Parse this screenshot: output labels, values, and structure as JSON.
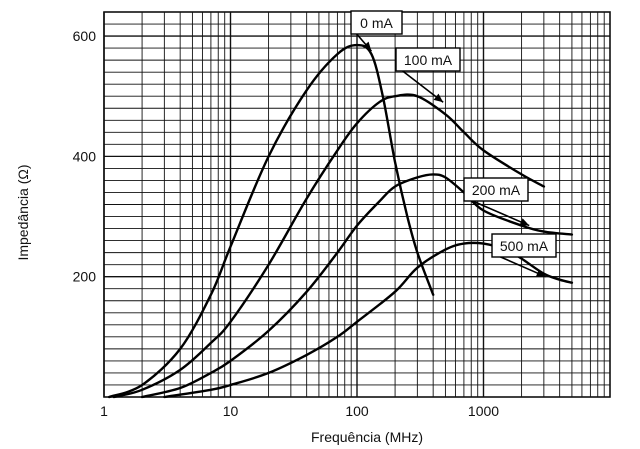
{
  "chart_data": {
    "type": "line",
    "title": "",
    "xlabel": "Frequência (MHz)",
    "ylabel": "Impedância (Ω)",
    "xscale": "log",
    "xlim": [
      1,
      10000
    ],
    "ylim": [
      0,
      640
    ],
    "grid": true,
    "x_ticks": [
      {
        "value": 1,
        "label": "1"
      },
      {
        "value": 10,
        "label": "10"
      },
      {
        "value": 100,
        "label": "100"
      },
      {
        "value": 1000,
        "label": "1000"
      }
    ],
    "y_ticks": [
      {
        "value": 200,
        "label": "200"
      },
      {
        "value": 400,
        "label": "400"
      },
      {
        "value": 600,
        "label": "600"
      }
    ],
    "series": [
      {
        "name": "0 mA",
        "x": [
          1.1,
          2,
          4,
          7,
          10,
          20,
          40,
          70,
          100,
          130,
          160,
          200,
          250,
          300,
          400
        ],
        "y": [
          0,
          20,
          80,
          170,
          250,
          400,
          510,
          570,
          585,
          570,
          500,
          390,
          300,
          240,
          170
        ]
      },
      {
        "name": "100 mA",
        "x": [
          1.2,
          2,
          4,
          7,
          10,
          20,
          40,
          70,
          100,
          150,
          200,
          300,
          500,
          700,
          1000,
          2000,
          3000
        ],
        "y": [
          0,
          12,
          45,
          90,
          125,
          220,
          330,
          410,
          455,
          490,
          500,
          500,
          470,
          440,
          410,
          370,
          350
        ]
      },
      {
        "name": "200 mA",
        "x": [
          2,
          4,
          7,
          10,
          20,
          40,
          70,
          100,
          150,
          200,
          300,
          400,
          500,
          700,
          1000,
          2000,
          3000,
          5000
        ],
        "y": [
          0,
          15,
          40,
          60,
          110,
          175,
          240,
          285,
          325,
          350,
          365,
          370,
          365,
          340,
          310,
          285,
          275,
          270
        ]
      },
      {
        "name": "500 mA",
        "x": [
          3,
          7,
          10,
          20,
          40,
          70,
          100,
          200,
          300,
          500,
          700,
          1000,
          1500,
          2000,
          3000,
          4000,
          5000
        ],
        "y": [
          0,
          12,
          20,
          40,
          70,
          100,
          125,
          175,
          215,
          245,
          255,
          255,
          245,
          230,
          205,
          195,
          190
        ]
      }
    ],
    "annotations": [
      {
        "series": "0 mA",
        "text": "0 mA",
        "point_x": 130,
        "point_y": 575
      },
      {
        "series": "100 mA",
        "text": "100 mA",
        "point_x": 480,
        "point_y": 490
      },
      {
        "series": "200 mA",
        "text": "200 mA",
        "point_x": 2300,
        "point_y": 285
      },
      {
        "series": "500 mA",
        "text": "500 mA",
        "point_x": 3100,
        "point_y": 200
      }
    ]
  }
}
